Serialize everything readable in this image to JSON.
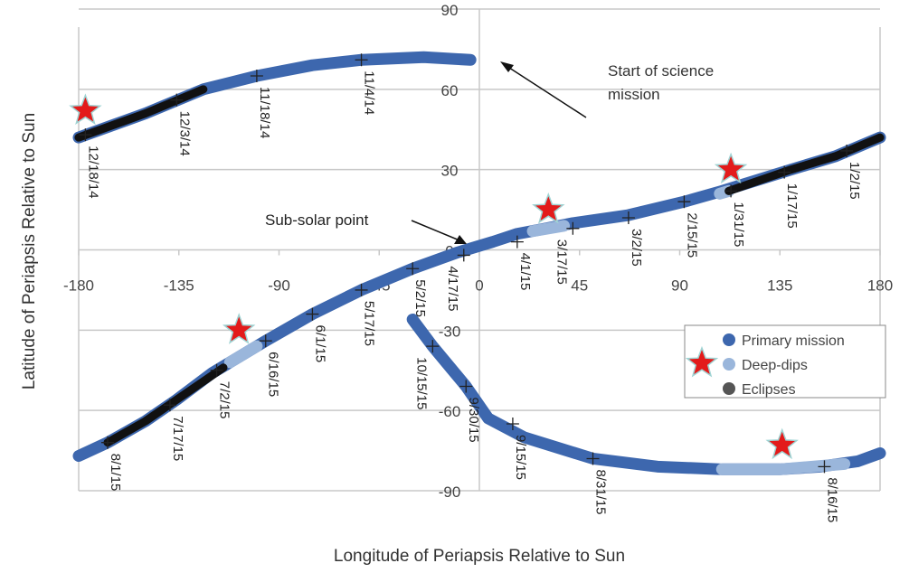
{
  "chart_data": {
    "type": "scatter",
    "title": "",
    "xlabel": "Longitude of Periapsis Relative to Sun",
    "ylabel": "Latitude of Periapsis Relative to Sun",
    "xlim": [
      -180,
      180
    ],
    "ylim": [
      -90,
      90
    ],
    "xticks": [
      -180,
      -135,
      -90,
      -45,
      0,
      45,
      90,
      135,
      180
    ],
    "yticks": [
      90,
      60,
      30,
      0,
      -30,
      -60,
      -90
    ],
    "grid": true,
    "legend_position": "right",
    "legend": [
      {
        "label": "Primary mission",
        "color": "#3d67ae"
      },
      {
        "label": "Deep-dips",
        "color": "#9ab6db"
      },
      {
        "label": "Eclipses",
        "color": "#555555"
      }
    ],
    "series": [
      {
        "name": "Primary mission",
        "color": "#3d67ae",
        "tracks": [
          [
            [
              -180,
              42
            ],
            [
              -150,
              51
            ],
            [
              -124,
              60
            ],
            [
              -100,
              65
            ],
            [
              -75,
              69
            ],
            [
              -53,
              71
            ],
            [
              -25,
              72
            ],
            [
              -4,
              71
            ]
          ],
          [
            [
              -180,
              -77
            ],
            [
              -167,
              -72
            ],
            [
              -150,
              -64
            ],
            [
              -136,
              -56
            ],
            [
              -120,
              -46
            ],
            [
              -108,
              -40
            ],
            [
              -96,
              -34
            ],
            [
              -75,
              -24
            ],
            [
              -53,
              -15
            ],
            [
              -30,
              -7
            ],
            [
              -10,
              -1
            ],
            [
              6,
              3
            ],
            [
              17,
              6
            ],
            [
              30,
              8
            ],
            [
              42,
              10
            ],
            [
              67,
              13
            ],
            [
              92,
              18
            ],
            [
              109,
              22
            ],
            [
              140,
              30
            ],
            [
              160,
              35
            ],
            [
              180,
              42
            ]
          ],
          [
            [
              -30,
              -26
            ],
            [
              -21,
              -36
            ],
            [
              -13,
              -44
            ],
            [
              -6,
              -51
            ],
            [
              4,
              -63
            ],
            [
              20,
              -70
            ],
            [
              51,
              -78
            ],
            [
              80,
              -81
            ],
            [
              109,
              -82
            ],
            [
              135,
              -82
            ],
            [
              153,
              -81
            ],
            [
              170,
              -79
            ],
            [
              180,
              -76
            ]
          ]
        ]
      },
      {
        "name": "Deep-dips",
        "color": "#9ab6db",
        "tracks": [
          [
            [
              -112,
              -42
            ],
            [
              -100,
              -36
            ]
          ],
          [
            [
              24,
              7
            ],
            [
              38,
              9
            ]
          ],
          [
            [
              109,
              -82
            ],
            [
              135,
              -82
            ],
            [
              164,
              -80
            ]
          ],
          [
            [
              108,
              21
            ],
            [
              112,
              22
            ]
          ]
        ]
      },
      {
        "name": "Eclipses",
        "color": "#111111",
        "tracks": [
          [
            [
              -180,
              42
            ],
            [
              -150,
              51
            ],
            [
              -124,
              60
            ]
          ],
          [
            [
              -167,
              -72
            ],
            [
              -150,
              -64
            ],
            [
              -136,
              -56
            ],
            [
              -115,
              -44
            ]
          ],
          [
            [
              112,
              22
            ],
            [
              140,
              30
            ],
            [
              160,
              35
            ],
            [
              180,
              42
            ]
          ]
        ]
      }
    ],
    "deep_dip_stars": [
      [
        -177,
        52
      ],
      [
        -108,
        -30
      ],
      [
        31,
        15
      ],
      [
        113,
        30
      ],
      [
        136,
        -73
      ]
    ],
    "date_ticks": [
      {
        "label": "12/18/14",
        "lon": -177,
        "lat": 43
      },
      {
        "label": "12/3/14",
        "lon": -136,
        "lat": 56
      },
      {
        "label": "11/18/14",
        "lon": -100,
        "lat": 65
      },
      {
        "label": "11/4/14",
        "lon": -53,
        "lat": 71
      },
      {
        "label": "8/1/15",
        "lon": -167,
        "lat": -72
      },
      {
        "label": "7/17/15",
        "lon": -139,
        "lat": -58
      },
      {
        "label": "7/2/15",
        "lon": -118,
        "lat": -45
      },
      {
        "label": "6/16/15",
        "lon": -96,
        "lat": -34
      },
      {
        "label": "6/1/15",
        "lon": -75,
        "lat": -24
      },
      {
        "label": "5/17/15",
        "lon": -53,
        "lat": -15
      },
      {
        "label": "5/2/15",
        "lon": -30,
        "lat": -7
      },
      {
        "label": "4/17/15",
        "lon": -7,
        "lat": -2
      },
      {
        "label": "4/1/15",
        "lon": 17,
        "lat": 3
      },
      {
        "label": "3/17/15",
        "lon": 42,
        "lat": 8
      },
      {
        "label": "3/2/15",
        "lon": 67,
        "lat": 12
      },
      {
        "label": "2/15/15",
        "lon": 92,
        "lat": 18
      },
      {
        "label": "1/31/15",
        "lon": 113,
        "lat": 22
      },
      {
        "label": "1/17/15",
        "lon": 137,
        "lat": 29
      },
      {
        "label": "1/2/15",
        "lon": 165,
        "lat": 37
      },
      {
        "label": "10/15/15",
        "lon": -21,
        "lat": -36
      },
      {
        "label": "9/30/15",
        "lon": -6,
        "lat": -51
      },
      {
        "label": "9/15/15",
        "lon": 15,
        "lat": -65
      },
      {
        "label": "8/31/15",
        "lon": 51,
        "lat": -78
      },
      {
        "label": "8/16/15",
        "lon": 155,
        "lat": -81
      }
    ],
    "annotations": [
      {
        "text": "Start of science mission",
        "lines": [
          "Start of science",
          "mission"
        ]
      },
      {
        "text": "Sub-solar point"
      }
    ]
  }
}
